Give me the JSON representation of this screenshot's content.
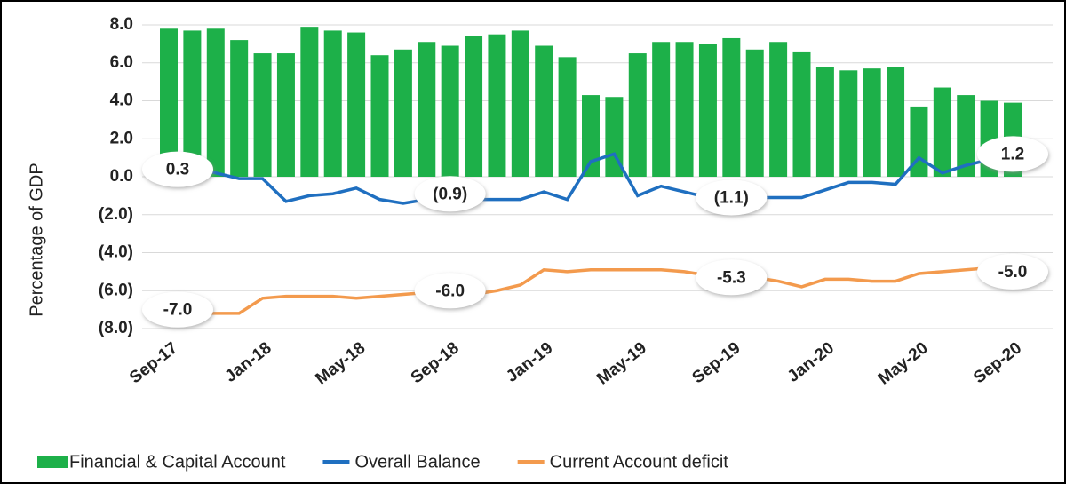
{
  "chart_data": {
    "type": "combo",
    "y_label": "Percentage of GDP",
    "categories": [
      "Sep-17",
      null,
      null,
      null,
      "Jan-18",
      null,
      null,
      null,
      "May-18",
      null,
      null,
      null,
      "Sep-18",
      null,
      null,
      null,
      "Jan-19",
      null,
      null,
      null,
      "May-19",
      null,
      null,
      null,
      "Sep-19",
      null,
      null,
      null,
      "Jan-20",
      null,
      null,
      null,
      "May-20",
      null,
      null,
      null,
      "Sep-20"
    ],
    "series": [
      {
        "name": "Financial & Capital Account",
        "type": "bar",
        "color": "#1db049",
        "values": [
          7.8,
          7.7,
          7.8,
          7.2,
          6.5,
          6.5,
          7.9,
          7.7,
          7.6,
          6.4,
          6.7,
          7.1,
          6.9,
          7.4,
          7.5,
          7.7,
          6.9,
          6.3,
          4.3,
          4.2,
          6.5,
          7.1,
          7.1,
          7.0,
          7.3,
          6.7,
          7.1,
          6.6,
          5.8,
          5.6,
          5.7,
          5.8,
          3.7,
          4.7,
          4.3,
          4.0,
          3.9
        ]
      },
      {
        "name": "Overall Balance",
        "type": "line",
        "color": "#1f6fc0",
        "values": [
          0.3,
          0.5,
          0.2,
          -0.1,
          -0.1,
          -1.3,
          -1.0,
          -0.9,
          -0.6,
          -1.2,
          -1.4,
          -1.2,
          -0.9,
          -1.2,
          -1.2,
          -1.2,
          -0.8,
          -1.2,
          0.8,
          1.2,
          -1.0,
          -0.5,
          -0.8,
          -1.1,
          -1.1,
          -1.1,
          -1.1,
          -1.1,
          -0.7,
          -0.3,
          -0.3,
          -0.4,
          1.0,
          0.2,
          0.6,
          0.9,
          1.2
        ],
        "value_labels": [
          "0.3",
          null,
          null,
          null,
          null,
          null,
          null,
          null,
          null,
          null,
          null,
          null,
          "(0.9)",
          null,
          null,
          null,
          null,
          null,
          null,
          null,
          null,
          null,
          null,
          null,
          "(1.1)",
          null,
          null,
          null,
          null,
          null,
          null,
          null,
          null,
          null,
          null,
          null,
          "1.2"
        ]
      },
      {
        "name": "Current Account deficit",
        "type": "line",
        "color": "#f39a4d",
        "values": [
          -7.0,
          -7.2,
          -7.2,
          -7.2,
          -6.4,
          -6.3,
          -6.3,
          -6.3,
          -6.4,
          -6.3,
          -6.2,
          -6.1,
          -6.0,
          -6.2,
          -6.0,
          -5.7,
          -4.9,
          -5.0,
          -4.9,
          -4.9,
          -4.9,
          -4.9,
          -5.0,
          -5.2,
          -5.3,
          -5.3,
          -5.5,
          -5.8,
          -5.4,
          -5.4,
          -5.5,
          -5.5,
          -5.1,
          -5.0,
          -4.9,
          -4.8,
          -5.0
        ],
        "value_labels": [
          "-7.0",
          null,
          null,
          null,
          null,
          null,
          null,
          null,
          null,
          null,
          null,
          null,
          "-6.0",
          null,
          null,
          null,
          null,
          null,
          null,
          null,
          null,
          null,
          null,
          null,
          "-5.3",
          null,
          null,
          null,
          null,
          null,
          null,
          null,
          null,
          null,
          null,
          null,
          "-5.0"
        ]
      }
    ],
    "ylim": [
      -8,
      8
    ],
    "yticks": [
      {
        "value": 8,
        "label": "8.0"
      },
      {
        "value": 6,
        "label": "6.0"
      },
      {
        "value": 4,
        "label": "4.0"
      },
      {
        "value": 2,
        "label": "2.0"
      },
      {
        "value": 0,
        "label": "0.0"
      },
      {
        "value": -2,
        "label": "(2.0)"
      },
      {
        "value": -4,
        "label": "(4.0)"
      },
      {
        "value": -6,
        "label": "(6.0)"
      },
      {
        "value": -8,
        "label": "(8.0)"
      }
    ],
    "grid": true
  }
}
